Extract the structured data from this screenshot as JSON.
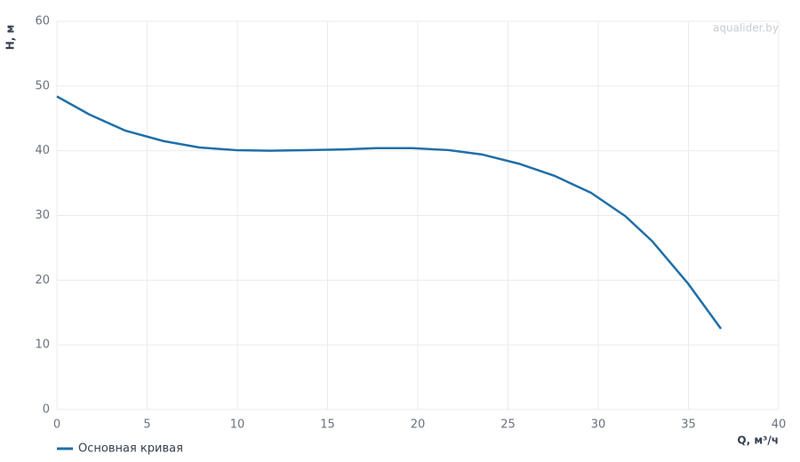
{
  "chart_data": {
    "type": "line",
    "x_label": "Q, м³/ч",
    "y_label": "H, м",
    "watermark": "aqualider.by",
    "x": [
      0,
      1.8,
      3.8,
      5.9,
      7.9,
      9.9,
      11.8,
      13.8,
      15.8,
      17.7,
      19.7,
      21.7,
      23.6,
      25.6,
      27.6,
      29.6,
      31.5,
      33.0,
      35.0,
      36.8
    ],
    "series": [
      {
        "name": "Основная кривая",
        "color": "#1f6fa8",
        "values": [
          48.4,
          45.6,
          43.1,
          41.5,
          40.5,
          40.1,
          40.0,
          40.1,
          40.2,
          40.4,
          40.4,
          40.1,
          39.4,
          38.0,
          36.1,
          33.5,
          29.9,
          26.0,
          19.4,
          12.5
        ]
      }
    ],
    "xlim": [
      0,
      40
    ],
    "xticks": [
      0,
      5,
      10,
      15,
      20,
      25,
      30,
      35,
      40
    ],
    "ylim": [
      0,
      60
    ],
    "yticks": [
      0,
      10,
      20,
      30,
      40,
      50,
      60
    ],
    "grid": true
  }
}
